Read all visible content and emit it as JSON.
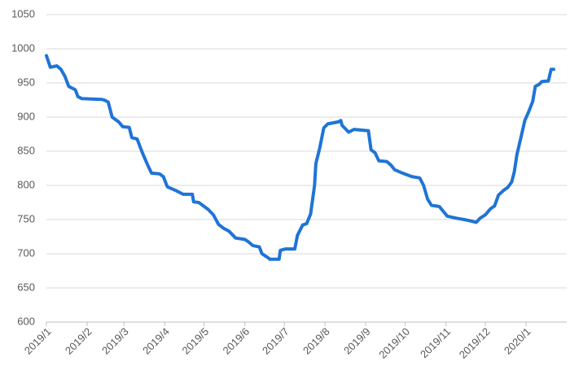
{
  "chart_data": {
    "type": "line",
    "x": [
      0,
      3,
      8,
      11,
      14,
      17,
      22,
      24,
      27,
      42,
      44,
      47,
      50,
      55,
      58,
      63,
      65,
      69,
      73,
      77,
      80,
      86,
      89,
      92,
      98,
      104,
      111,
      112,
      116,
      123,
      127,
      131,
      135,
      139,
      144,
      151,
      154,
      157,
      162,
      164,
      168,
      170,
      177,
      178,
      182,
      189,
      191,
      195,
      198,
      201,
      204,
      205,
      208,
      211,
      214,
      222,
      224,
      225,
      230,
      234,
      245,
      247,
      250,
      253,
      259,
      262,
      265,
      271,
      278,
      284,
      287,
      290,
      293,
      299,
      302,
      305,
      312,
      318,
      323,
      327,
      330,
      334,
      338,
      341,
      344,
      348,
      351,
      354,
      356,
      358,
      361,
      364,
      367,
      370,
      372,
      375,
      377,
      382,
      384,
      386
    ],
    "values": [
      990,
      973,
      975,
      970,
      960,
      945,
      940,
      930,
      927,
      926,
      925,
      922,
      900,
      893,
      886,
      885,
      870,
      868,
      848,
      830,
      818,
      817,
      813,
      798,
      793,
      787,
      787,
      776,
      775,
      765,
      757,
      743,
      737,
      733,
      723,
      721,
      717,
      712,
      710,
      700,
      695,
      692,
      692,
      705,
      707,
      707,
      727,
      742,
      744,
      758,
      800,
      832,
      855,
      884,
      890,
      893,
      895,
      888,
      878,
      882,
      880,
      852,
      848,
      836,
      835,
      830,
      823,
      818,
      813,
      811,
      800,
      780,
      771,
      769,
      762,
      755,
      752,
      750,
      748,
      746,
      752,
      757,
      766,
      770,
      786,
      793,
      797,
      805,
      820,
      845,
      870,
      895,
      908,
      923,
      945,
      948,
      952,
      953,
      970,
      970
    ],
    "color": "#1f74d6",
    "xlim": [
      0,
      386
    ],
    "xticks": [
      {
        "value": 0,
        "label": "2019/1"
      },
      {
        "value": 31,
        "label": "2019/2"
      },
      {
        "value": 59,
        "label": "2019/3"
      },
      {
        "value": 90,
        "label": "2019/4"
      },
      {
        "value": 120,
        "label": "2019/5"
      },
      {
        "value": 151,
        "label": "2019/6"
      },
      {
        "value": 181,
        "label": "2019/7"
      },
      {
        "value": 212,
        "label": "2019/8"
      },
      {
        "value": 243,
        "label": "2019/9"
      },
      {
        "value": 273,
        "label": "2019/10"
      },
      {
        "value": 304,
        "label": "2019/11"
      },
      {
        "value": 334,
        "label": "2019/12"
      },
      {
        "value": 365,
        "label": "2020/1"
      }
    ],
    "ylim": [
      600,
      1050
    ],
    "yticks": [
      600,
      650,
      700,
      750,
      800,
      850,
      900,
      950,
      1000,
      1050
    ],
    "grid": true
  }
}
